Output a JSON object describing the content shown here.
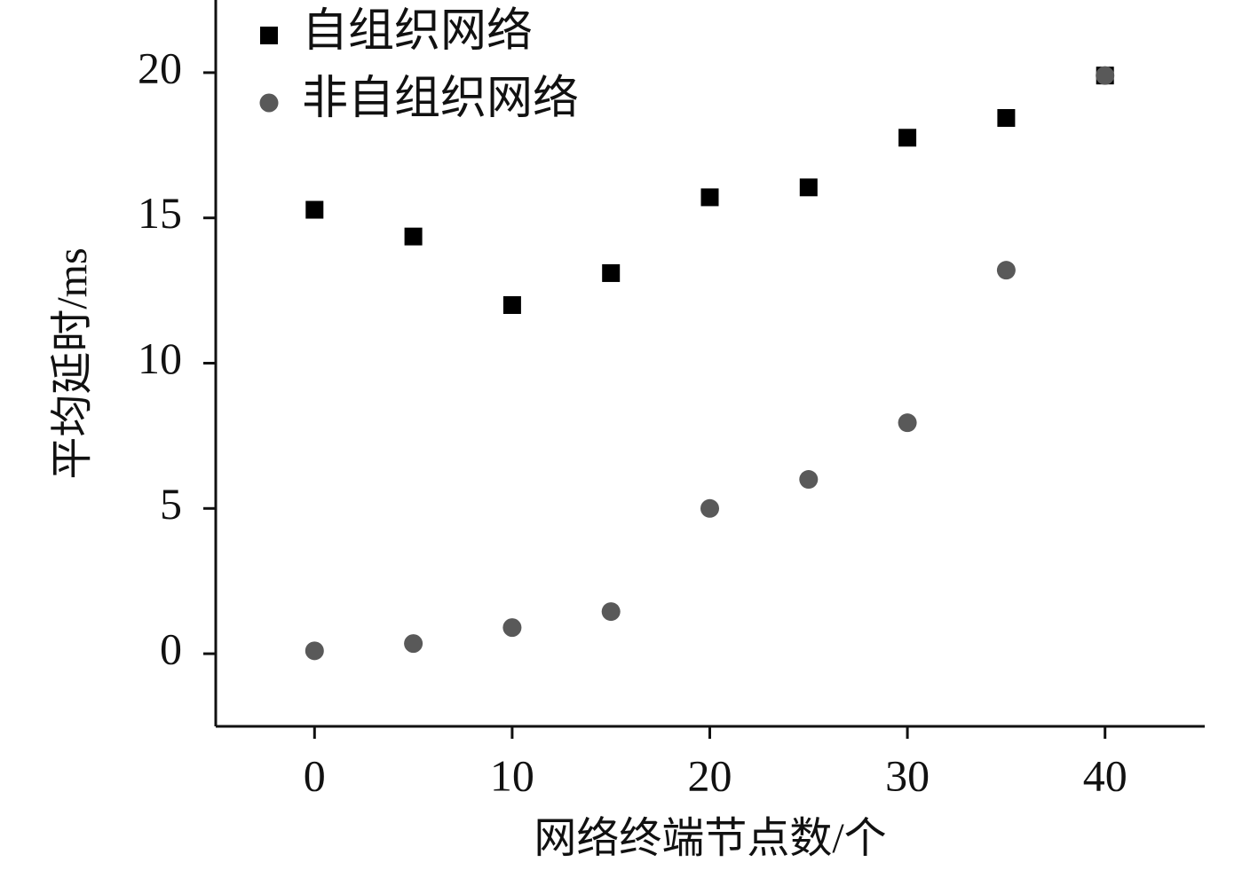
{
  "chart_data": {
    "type": "scatter",
    "x_label": "网络终端节点数/个",
    "y_label": "平均延时/ms",
    "xlim": [
      -5,
      45
    ],
    "xticks": [
      0,
      10,
      20,
      30,
      40
    ],
    "ylim": [
      -2.5,
      22.5
    ],
    "yticks": [
      0,
      5,
      10,
      15,
      20
    ],
    "legend_position": "upper left",
    "series": [
      {
        "name": "自组织网络",
        "color": "#000000",
        "marker": "square",
        "x": [
          0,
          5,
          10,
          15,
          20,
          25,
          30,
          35,
          40
        ],
        "values": [
          15.28,
          14.36,
          12.0,
          13.1,
          15.71,
          16.05,
          17.76,
          18.44,
          19.9
        ]
      },
      {
        "name": "非自组织网络",
        "color": "#595959",
        "marker": "circle",
        "x": [
          0,
          5,
          10,
          15,
          20,
          25,
          30,
          35,
          40
        ],
        "values": [
          0.1,
          0.35,
          0.9,
          1.45,
          5.0,
          6.0,
          7.95,
          13.2,
          19.9
        ]
      }
    ]
  }
}
